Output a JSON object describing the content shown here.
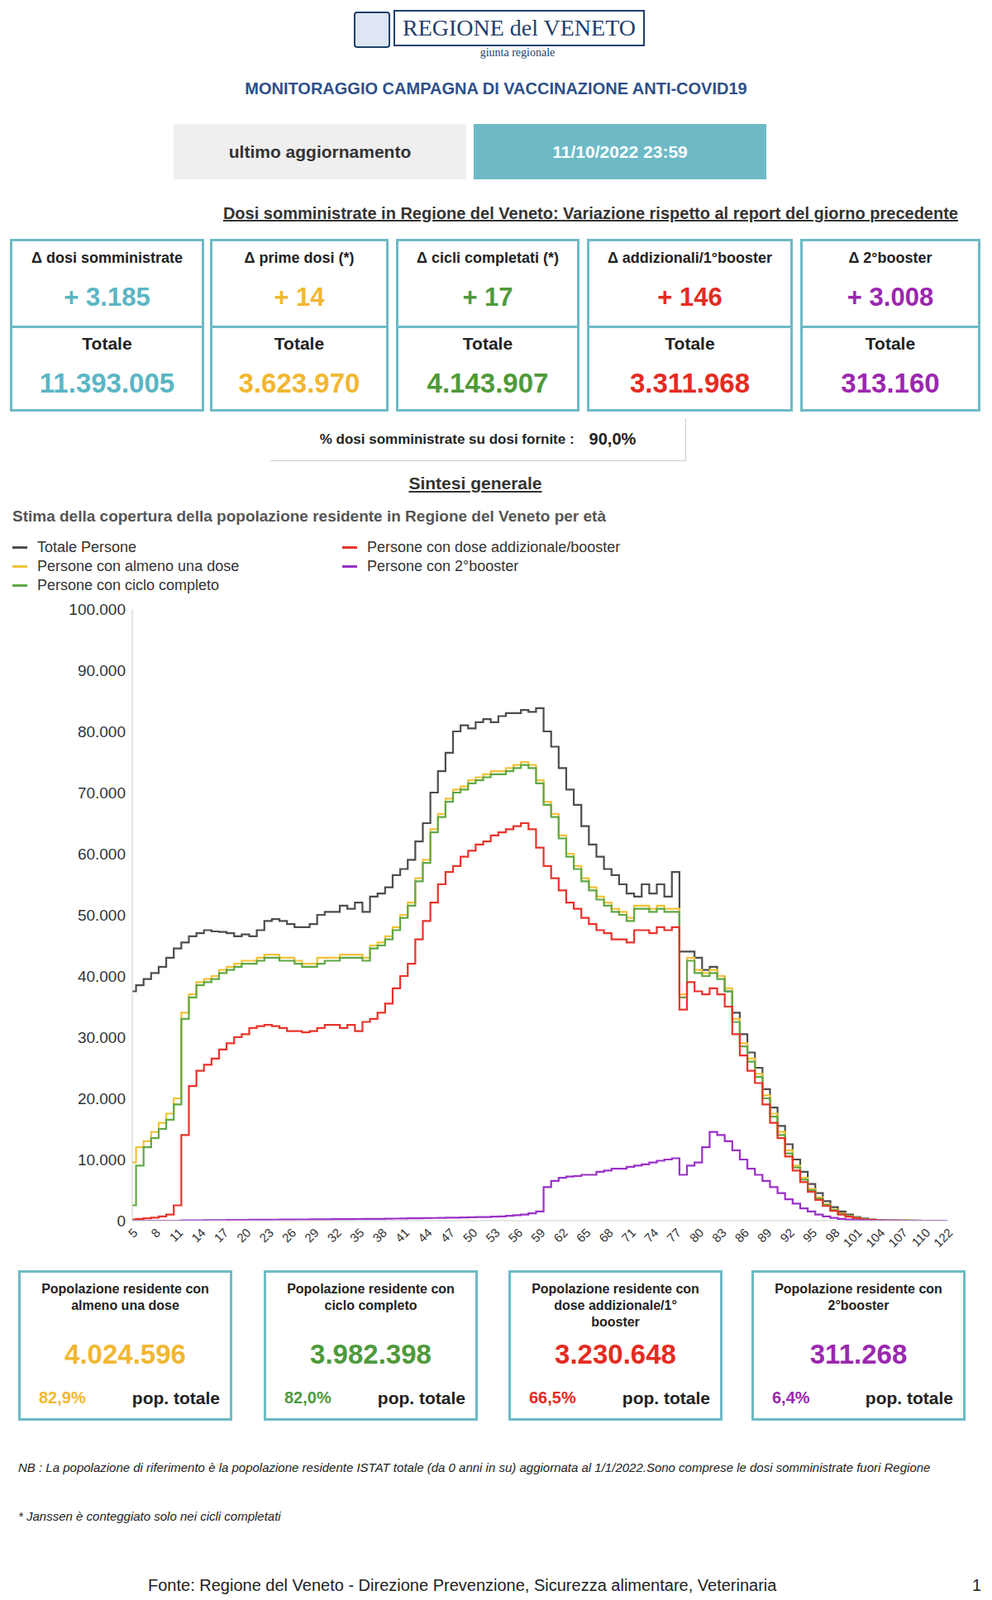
{
  "header": {
    "name": "REGIONE del VENETO",
    "sub": "giunta regionale",
    "title": "MONITORAGGIO CAMPAGNA DI VACCINAZIONE ANTI-COVID19"
  },
  "update": {
    "label": "ultimo aggiornamento",
    "value": "11/10/2022 23:59"
  },
  "deltas": {
    "title": "Dosi somministrate in Regione del Veneto: Variazione rispetto al report del giorno precedente",
    "boxes": [
      {
        "label": "Δ dosi somministrate",
        "delta": "+ 3.185",
        "total_label": "Totale",
        "total": "11.393.005",
        "color": "#5ab6c4"
      },
      {
        "label": "Δ prime dosi (*)",
        "delta": "+ 14",
        "total_label": "Totale",
        "total": "3.623.970",
        "color": "#f2b731"
      },
      {
        "label": "Δ cicli completati (*)",
        "delta": "+ 17",
        "total_label": "Totale",
        "total": "4.143.907",
        "color": "#4e9a3a"
      },
      {
        "label": "Δ addizionali/1°booster",
        "delta": "+ 146",
        "total_label": "Totale",
        "total": "3.311.968",
        "color": "#e52b21"
      },
      {
        "label": "Δ 2°booster",
        "delta": "+ 3.008",
        "total_label": "Totale",
        "total": "313.160",
        "color": "#9b27b0"
      }
    ]
  },
  "ratio": {
    "label": "% dosi somministrate su dosi fornite :",
    "value": "90,0%"
  },
  "section_title": "Sintesi generale",
  "chart_data": {
    "type": "line",
    "title": "Stima della copertura della popolazione residente in Regione del Veneto per età",
    "legend": "upper left",
    "grid": false,
    "categories": [
      "5",
      null,
      null,
      "8",
      null,
      null,
      "11",
      null,
      null,
      "14",
      null,
      null,
      "17",
      null,
      null,
      "20",
      null,
      null,
      "23",
      null,
      null,
      "26",
      null,
      null,
      "29",
      null,
      null,
      "32",
      null,
      null,
      "35",
      null,
      null,
      "38",
      null,
      null,
      "41",
      null,
      null,
      "44",
      null,
      null,
      "47",
      null,
      null,
      "50",
      null,
      null,
      "53",
      null,
      null,
      "56",
      null,
      null,
      "59",
      null,
      null,
      "62",
      null,
      null,
      "65",
      null,
      null,
      "68",
      null,
      null,
      "71",
      null,
      null,
      "74",
      null,
      null,
      "77",
      null,
      null,
      "80",
      null,
      null,
      "83",
      null,
      null,
      "86",
      null,
      null,
      "89",
      null,
      null,
      "92",
      null,
      null,
      "95",
      null,
      null,
      "98",
      null,
      null,
      "101",
      null,
      null,
      "104",
      null,
      null,
      "107",
      null,
      null,
      "110",
      null,
      null,
      "122"
    ],
    "ylim": [
      0,
      100000
    ],
    "yticks": [
      0,
      {
        "value": 10000,
        "label": "10.000"
      },
      {
        "value": 20000,
        "label": "20.000"
      },
      {
        "value": 30000,
        "label": "30.000"
      },
      {
        "value": 40000,
        "label": "40.000"
      },
      {
        "value": 50000,
        "label": "50.000"
      },
      {
        "value": 60000,
        "label": "60.000"
      },
      {
        "value": 70000,
        "label": "70.000"
      },
      {
        "value": 80000,
        "label": "80.000"
      },
      {
        "value": 90000,
        "label": "90.000"
      },
      {
        "value": 100000,
        "label": "100.000"
      }
    ],
    "series": [
      {
        "name": "Totale Persone",
        "color": "#4d4d4d",
        "line_style": "step",
        "values": [
          37500,
          38500,
          39500,
          40500,
          41500,
          43000,
          44500,
          45500,
          46500,
          47000,
          47500,
          47300,
          47200,
          47000,
          46500,
          46800,
          46500,
          47500,
          49000,
          49300,
          49000,
          48500,
          48000,
          48000,
          48500,
          50000,
          50500,
          50500,
          51500,
          51000,
          52000,
          50500,
          53000,
          53500,
          54500,
          56500,
          57500,
          59000,
          62000,
          65000,
          70000,
          73500,
          76500,
          80000,
          81000,
          80500,
          81500,
          82000,
          81500,
          82500,
          83000,
          83000,
          83500,
          83200,
          83800,
          80000,
          77500,
          74000,
          70500,
          68000,
          64500,
          61500,
          59500,
          57500,
          56500,
          55000,
          53500,
          53000,
          55000,
          53500,
          55000,
          53000,
          57000,
          44000,
          44000,
          43000,
          41000,
          41500,
          40000,
          37500,
          34000,
          30500,
          27500,
          25000,
          21500,
          18500,
          15500,
          12500,
          10000,
          8000,
          6000,
          4500,
          3200,
          2200,
          1500,
          1000,
          600,
          350,
          200,
          100,
          60,
          30,
          15,
          8,
          4,
          2,
          1,
          1,
          1
        ]
      },
      {
        "name": "Persone con almeno una dose",
        "color": "#f2c23a",
        "line_style": "step",
        "values": [
          9500,
          12000,
          13000,
          14500,
          16000,
          17500,
          20000,
          34000,
          37000,
          39000,
          39500,
          40000,
          41000,
          41500,
          42000,
          42500,
          42500,
          43000,
          43500,
          43500,
          43000,
          43000,
          42500,
          42000,
          42000,
          43000,
          43000,
          43000,
          43500,
          43500,
          43500,
          43000,
          45000,
          45500,
          46500,
          48000,
          50000,
          52000,
          56000,
          59000,
          64000,
          66500,
          69000,
          70500,
          71000,
          72000,
          72500,
          73000,
          73500,
          73500,
          74000,
          74500,
          75000,
          74500,
          72000,
          68500,
          66500,
          63000,
          60000,
          58000,
          56000,
          54500,
          53000,
          52000,
          51000,
          50500,
          49500,
          51500,
          51500,
          51000,
          51500,
          51000,
          51000,
          37000,
          43000,
          41000,
          40500,
          41000,
          40000,
          38000,
          33000,
          29000,
          26500,
          24000,
          20500,
          17500,
          14500,
          11500,
          9000,
          7000,
          5200,
          3800,
          2700,
          1800,
          1200,
          800,
          450,
          250,
          150,
          70,
          40,
          20,
          10,
          5,
          3,
          1,
          1,
          0,
          0
        ]
      },
      {
        "name": "Persone con ciclo completo",
        "color": "#5fa845",
        "line_style": "step",
        "values": [
          2500,
          9000,
          12000,
          13500,
          15000,
          16500,
          19000,
          33000,
          36500,
          38500,
          39000,
          39500,
          40500,
          41000,
          41500,
          42000,
          42000,
          42500,
          43000,
          43000,
          42500,
          42500,
          42000,
          41500,
          41500,
          42000,
          42500,
          42500,
          43000,
          43000,
          43000,
          42500,
          44500,
          45000,
          46000,
          47500,
          49500,
          51500,
          55500,
          58500,
          63500,
          66000,
          68500,
          70000,
          70500,
          71500,
          72000,
          72500,
          73000,
          73000,
          73500,
          74000,
          74500,
          74000,
          71500,
          68000,
          66000,
          62500,
          59500,
          57500,
          55500,
          54000,
          52500,
          51500,
          50500,
          50000,
          49000,
          51000,
          51000,
          50500,
          51000,
          50500,
          50500,
          36500,
          42500,
          40500,
          40000,
          40500,
          39500,
          37500,
          32500,
          28500,
          26000,
          23500,
          20000,
          17000,
          14000,
          11000,
          8700,
          6700,
          5000,
          3600,
          2600,
          1700,
          1100,
          750,
          420,
          230,
          140,
          60,
          35,
          18,
          9,
          4,
          2,
          1,
          1,
          0,
          0
        ]
      },
      {
        "name": "Persone con dose addizionale/booster",
        "color": "#e8332a",
        "line_style": "step",
        "values": [
          200,
          300,
          400,
          500,
          700,
          1000,
          2500,
          14000,
          22000,
          24500,
          25500,
          26500,
          28000,
          29000,
          30000,
          30500,
          31500,
          31800,
          32000,
          31800,
          31500,
          31000,
          31000,
          30800,
          31000,
          31500,
          32000,
          32000,
          31500,
          32000,
          31000,
          32500,
          33000,
          34000,
          35500,
          38000,
          40000,
          42000,
          46000,
          49000,
          52000,
          55000,
          57000,
          58000,
          59500,
          60500,
          61500,
          62000,
          63000,
          63500,
          64000,
          64500,
          65000,
          64000,
          61000,
          58000,
          56000,
          54000,
          52000,
          51000,
          49500,
          48500,
          47500,
          47000,
          46000,
          46000,
          45500,
          47500,
          47500,
          47000,
          48000,
          47500,
          48000,
          34500,
          39000,
          37500,
          37000,
          38000,
          37000,
          35000,
          30500,
          27000,
          24500,
          22500,
          19000,
          16000,
          13500,
          10500,
          8200,
          6300,
          4700,
          3400,
          2400,
          1600,
          1000,
          650,
          380,
          200,
          120,
          50,
          30,
          15,
          7,
          3,
          2,
          1,
          0,
          0,
          0
        ]
      },
      {
        "name": "Persone con 2°booster",
        "color": "#9b30c8",
        "line_style": "step",
        "values": [
          0,
          0,
          0,
          0,
          0,
          0,
          0,
          50,
          60,
          70,
          80,
          90,
          100,
          110,
          120,
          130,
          140,
          150,
          160,
          170,
          180,
          190,
          200,
          200,
          210,
          220,
          230,
          240,
          250,
          260,
          270,
          280,
          290,
          300,
          320,
          340,
          360,
          380,
          400,
          420,
          440,
          460,
          480,
          500,
          520,
          550,
          580,
          600,
          650,
          700,
          800,
          900,
          1000,
          1200,
          1500,
          5500,
          6500,
          7000,
          7200,
          7300,
          7500,
          7500,
          8000,
          8200,
          8500,
          8500,
          8800,
          9000,
          9200,
          9500,
          9800,
          10000,
          10200,
          7500,
          9000,
          9500,
          12000,
          14500,
          14000,
          13000,
          11500,
          10000,
          8500,
          7500,
          6500,
          5500,
          4500,
          3500,
          2800,
          2000,
          1500,
          1000,
          700,
          450,
          300,
          180,
          100,
          60,
          30,
          15,
          8,
          4,
          2,
          1,
          0,
          0,
          0,
          0,
          0
        ]
      }
    ]
  },
  "summary_boxes": [
    {
      "label": "Popolazione residente con almeno una dose",
      "value": "4.024.596",
      "percent": "82,9%",
      "suffix": "pop. totale",
      "color": "#f2b731"
    },
    {
      "label": "Popolazione residente con ciclo completo",
      "value": "3.982.398",
      "percent": "82,0%",
      "suffix": "pop. totale",
      "color": "#4e9a3a"
    },
    {
      "label": "Popolazione residente con dose addizionale/1° booster",
      "value": "3.230.648",
      "percent": "66,5%",
      "suffix": "pop. totale",
      "color": "#e52b21"
    },
    {
      "label": "Popolazione residente con 2°booster",
      "value": "311.268",
      "percent": "6,4%",
      "suffix": "pop. totale",
      "color": "#9b27b0"
    }
  ],
  "notes": [
    "NB : La popolazione di riferimento è la popolazione residente ISTAT totale (da 0 anni in su) aggiornata  al 1/1/2022.Sono comprese le dosi somministrate fuori Regione",
    "* Janssen è conteggiato solo nei cicli completati"
  ],
  "footer": {
    "source": "Fonte: Regione del Veneto - Direzione Prevenzione, Sicurezza alimentare, Veterinaria",
    "page": "1"
  }
}
